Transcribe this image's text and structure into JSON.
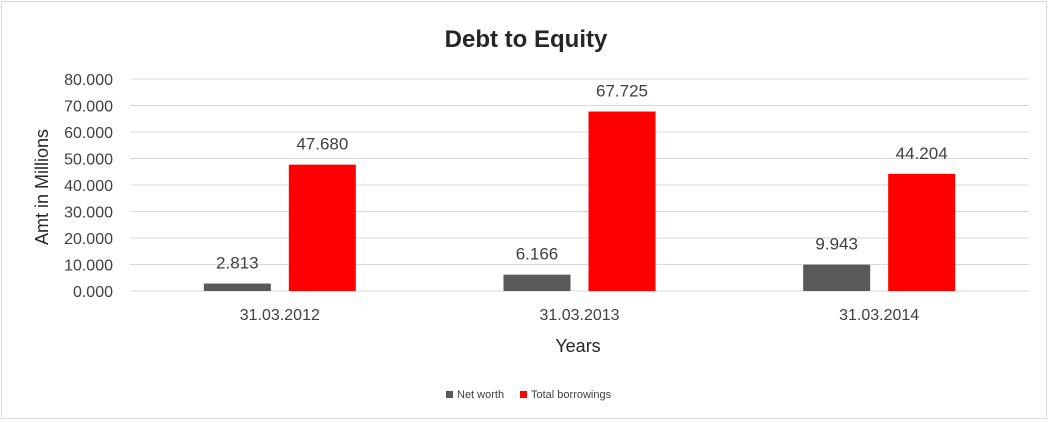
{
  "chart_data": {
    "type": "bar",
    "title": "Debt to Equity",
    "xlabel": "Years",
    "ylabel": "Amt in Millions",
    "categories": [
      "31.03.2012",
      "31.03.2013",
      "31.03.2014"
    ],
    "series": [
      {
        "name": "Net worth",
        "values": [
          2.813,
          6.166,
          9.943
        ],
        "labels": [
          "2.813",
          "6.166",
          "9.943"
        ],
        "color": "#595959"
      },
      {
        "name": "Total borrowings",
        "values": [
          47.68,
          67.725,
          44.204
        ],
        "labels": [
          "47.680",
          "67.725",
          "44.204"
        ],
        "color": "#ff0000"
      }
    ],
    "ylim": [
      0,
      80
    ],
    "yticks": [
      0,
      10,
      20,
      30,
      40,
      50,
      60,
      70,
      80
    ],
    "ytick_labels": [
      "0.000",
      "10.000",
      "20.000",
      "30.000",
      "40.000",
      "50.000",
      "60.000",
      "70.000",
      "80.000"
    ],
    "grid": true,
    "legend_position": "bottom"
  }
}
